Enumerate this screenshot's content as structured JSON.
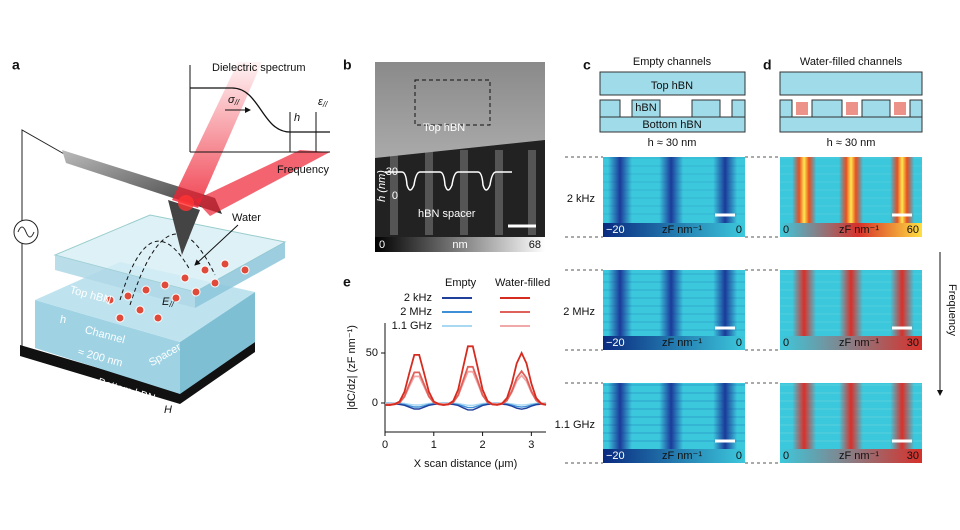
{
  "panel_a": {
    "label": "a",
    "inset": {
      "title": "Dielectric spectrum",
      "sigma": {
        "symbol": "σ",
        "subscript": "//"
      },
      "h": "h",
      "epsilon": {
        "symbol": "ε",
        "subscript": "//"
      },
      "xlabel": "Frequency"
    },
    "water": "Water",
    "top_hbn": "Top hBN",
    "field": {
      "symbol": "E",
      "subscript": "//"
    },
    "h": "h",
    "channel": "Channel",
    "width": "≈ 200 nm",
    "spacer": "Spacer",
    "bottom_hbn": "Bottom hBN",
    "H": "H",
    "graphite": "Graphite"
  },
  "panel_b": {
    "label": "b",
    "top_hbn": "Top hBN",
    "profile_axis": {
      "label": "h (nm)",
      "ticks": [
        "30",
        "0"
      ]
    },
    "spacer": "hBN spacer",
    "colorbar": {
      "min": "0",
      "unit": "nm",
      "max": "68"
    }
  },
  "panel_c": {
    "label": "c",
    "title": "Empty channels",
    "schematic": {
      "top": "Top hBN",
      "channel": "hBN",
      "bottom": "Bottom  hBN"
    },
    "height": "h ≈ 30 nm",
    "rows": [
      {
        "frequency": "2 kHz",
        "colorbar": {
          "min": "−20",
          "unit": "zF nm⁻¹",
          "max": "0"
        }
      },
      {
        "frequency": "2 MHz",
        "colorbar": {
          "min": "−20",
          "unit": "zF nm⁻¹",
          "max": "0"
        }
      },
      {
        "frequency": "1.1 GHz",
        "colorbar": {
          "min": "−20",
          "unit": "zF nm⁻¹",
          "max": "0"
        }
      }
    ]
  },
  "panel_d": {
    "label": "d",
    "title": "Water-filled channels",
    "height": "h ≈ 30 nm",
    "colorbars": [
      {
        "min": "0",
        "unit": "zF nm⁻¹",
        "max": "60"
      },
      {
        "min": "0",
        "unit": "zF nm⁻¹",
        "max": "30"
      },
      {
        "min": "0",
        "unit": "zF nm⁻¹",
        "max": "30"
      }
    ],
    "axis": "Frequency"
  },
  "panel_e": {
    "label": "e"
  },
  "chart_data": {
    "type": "line",
    "xlabel": "X scan distance (μm)",
    "ylabel": "|dC/dz| (zF nm⁻¹)",
    "x": [
      0,
      0.1,
      0.2,
      0.3,
      0.4,
      0.5,
      0.6,
      0.7,
      0.8,
      0.9,
      1,
      1.1,
      1.2,
      1.3,
      1.4,
      1.5,
      1.6,
      1.7,
      1.8,
      1.9,
      2,
      2.1,
      2.2,
      2.3,
      2.4,
      2.5,
      2.6,
      2.7,
      2.8,
      2.9,
      3,
      3.1,
      3.2,
      3.3
    ],
    "xlim": [
      0,
      3.3
    ],
    "ylim": [
      -29,
      80
    ],
    "xticks": [
      0,
      1,
      2,
      3
    ],
    "yticks": [
      0,
      50
    ],
    "legend_rows": [
      "2 kHz",
      "2 MHz",
      "1.1 GHz"
    ],
    "series": [
      {
        "name": "Empty",
        "lines": [
          {
            "color": "#1f3f9a",
            "values": [
              -1,
              -1,
              -1.1,
              -1.4,
              -2.3,
              -4.2,
              -6,
              -6,
              -4.2,
              -2.3,
              -1.4,
              -1.1,
              -1,
              -1.1,
              -1.4,
              -2.5,
              -4.8,
              -6.9,
              -6.9,
              -4.8,
              -2.5,
              -1.4,
              -1.1,
              -1,
              -1.2,
              -1.7,
              -3.1,
              -5.2,
              -6.2,
              -5.2,
              -3.1,
              -1.7,
              -1.2,
              -1
            ]
          },
          {
            "color": "#3f8fd6",
            "values": [
              -0.5,
              -0.5,
              -0.6,
              -0.7,
              -1.4,
              -2.8,
              -4,
              -4,
              -2.8,
              -1.4,
              -0.7,
              -0.6,
              -0.5,
              -0.5,
              -0.8,
              -1.6,
              -3.1,
              -4.6,
              -4.6,
              -3.1,
              -1.6,
              -0.8,
              -0.5,
              -0.5,
              -0.6,
              -1,
              -2,
              -3.4,
              -4.1,
              -3.4,
              -2,
              -1,
              -0.6,
              -0.5
            ]
          },
          {
            "color": "#a9d8f2",
            "values": [
              0,
              0,
              0,
              -0.1,
              -0.5,
              -1.3,
              -2,
              -2,
              -1.3,
              -0.5,
              -0.1,
              0,
              0,
              0,
              -0.2,
              -0.6,
              -1.5,
              -2.3,
              -2.3,
              -1.5,
              -0.6,
              -0.2,
              0,
              0,
              -0.1,
              -0.3,
              -0.9,
              -1.7,
              -2.1,
              -1.7,
              -0.9,
              -0.3,
              -0.1,
              0
            ]
          }
        ]
      },
      {
        "name": "Water-filled",
        "lines": [
          {
            "color": "#d62b1f",
            "values": [
              -2,
              -2,
              -1,
              1.5,
              11.2,
              30.2,
              48.1,
              48.1,
              30.2,
              11.2,
              1.5,
              -1,
              -2,
              -1.3,
              2.1,
              13.4,
              35.6,
              56.7,
              56.7,
              35.6,
              13.4,
              2.1,
              -1.3,
              -1.8,
              -0.5,
              5,
              19.3,
              39.6,
              50,
              39.6,
              19.3,
              5,
              -0.5,
              -1.8
            ]
          },
          {
            "color": "#e0605a",
            "values": [
              -2,
              -2,
              -1.4,
              0.3,
              6.6,
              18.9,
              30.6,
              30.6,
              18.9,
              6.6,
              0.3,
              -1.4,
              -2,
              -1.5,
              0.7,
              8,
              22.4,
              36.2,
              36.2,
              22.4,
              8,
              0.7,
              -1.5,
              -1.9,
              -1,
              2.6,
              11.8,
              25,
              31.8,
              25,
              11.8,
              2.6,
              -1,
              -1.9
            ]
          },
          {
            "color": "#f0a8a8",
            "values": [
              -1,
              -1,
              -0.5,
              0.9,
              6.3,
              16.7,
              26.6,
              26.6,
              16.7,
              6.3,
              0.9,
              -0.5,
              -1,
              -0.6,
              1.3,
              7.5,
              19.7,
              31.3,
              31.3,
              19.7,
              7.5,
              1.3,
              -0.6,
              -0.9,
              -0.2,
              2.9,
              10.7,
              21.9,
              27.6,
              21.9,
              10.7,
              2.9,
              -0.2,
              -0.9
            ]
          }
        ]
      }
    ]
  }
}
